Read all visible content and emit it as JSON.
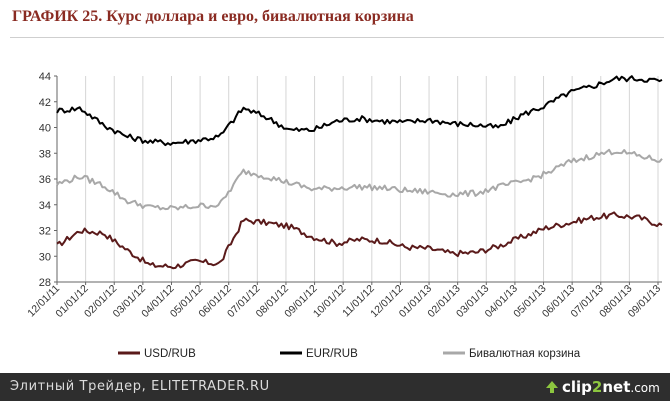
{
  "title": "ГРАФИК 25. Курс доллара и евро, бивалютная корзина",
  "footer": {
    "left_text": "Элитный Трейдер, ELITETRADER.RU",
    "logo_text_a": "clip",
    "logo_text_b": "2",
    "logo_text_c": "net",
    "logo_suffix": ".com",
    "logo_icon": "up-arrow-icon"
  },
  "chart_data": {
    "type": "line",
    "ylim": [
      28,
      44
    ],
    "yticks": [
      28,
      30,
      32,
      34,
      36,
      38,
      40,
      42,
      44
    ],
    "x_tick_labels": [
      "12/01/11",
      "01/01/12",
      "02/01/12",
      "03/01/12",
      "04/01/12",
      "05/01/12",
      "06/01/12",
      "07/01/12",
      "08/01/12",
      "09/01/12",
      "10/01/12",
      "11/01/12",
      "12/01/12",
      "01/01/13",
      "02/01/13",
      "03/01/13",
      "04/01/13",
      "05/01/13",
      "06/01/13",
      "07/01/13",
      "08/01/13",
      "09/01/13"
    ],
    "grid": "vertical",
    "legend_position": "bottom",
    "series": [
      {
        "name": "USD/RUB",
        "color": "#5a1a1a",
        "values": [
          30.8,
          32.0,
          31.8,
          30.5,
          29.3,
          29.2,
          29.6,
          29.4,
          32.8,
          32.6,
          32.3,
          31.5,
          31.0,
          31.3,
          31.2,
          30.7,
          30.6,
          30.2,
          30.3,
          30.8,
          31.5,
          32.2,
          32.6,
          33.0,
          33.2,
          33.0,
          32.4
        ]
      },
      {
        "name": "EUR/RUB",
        "color": "#000000",
        "values": [
          41.3,
          41.5,
          40.2,
          39.3,
          38.9,
          38.8,
          39.0,
          39.3,
          41.5,
          40.8,
          39.8,
          39.8,
          40.5,
          40.7,
          40.5,
          40.4,
          40.6,
          40.3,
          40.2,
          40.0,
          41.0,
          41.7,
          42.7,
          43.2,
          43.8,
          43.8,
          43.6
        ]
      },
      {
        "name": "Бивалютная корзина",
        "color": "#a8a8a8",
        "values": [
          35.6,
          36.2,
          35.5,
          34.3,
          33.8,
          33.7,
          33.9,
          34.0,
          36.6,
          36.2,
          35.7,
          35.2,
          35.3,
          35.4,
          35.3,
          35.1,
          35.0,
          34.8,
          34.9,
          35.4,
          35.8,
          36.4,
          37.3,
          37.8,
          38.2,
          37.8,
          37.4
        ]
      }
    ]
  }
}
